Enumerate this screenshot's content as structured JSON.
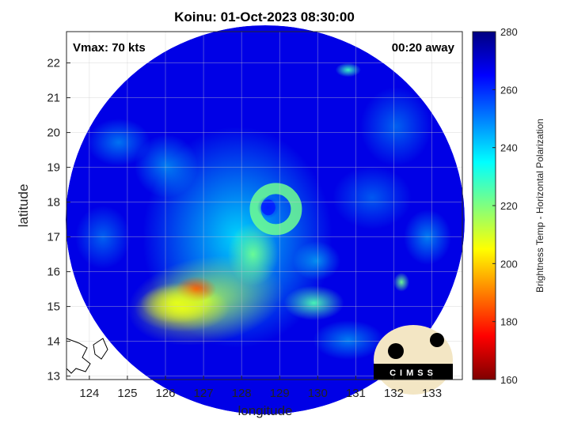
{
  "chart_data": {
    "type": "heatmap",
    "title": "Koinu: 01-Oct-2023 08:30:00",
    "annotations": {
      "left": "Vmax: 70 kts",
      "right": "00:20 away"
    },
    "xlabel": "longitude",
    "ylabel": "latitude",
    "xlim": [
      123.4,
      133.8
    ],
    "ylim": [
      12.9,
      22.9
    ],
    "xticks": [
      124,
      125,
      126,
      127,
      128,
      129,
      130,
      131,
      132,
      133
    ],
    "yticks": [
      13,
      14,
      15,
      16,
      17,
      18,
      19,
      20,
      21,
      22
    ],
    "grid": true,
    "colorbar": {
      "label": "Brightness Temp - Horizontal Polarization",
      "range": [
        160,
        280
      ],
      "ticks": [
        160,
        180,
        200,
        220,
        240,
        260,
        280
      ],
      "colormap": "jet"
    },
    "background_value": 268,
    "features": [
      {
        "name": "eyewall",
        "lon": 128.9,
        "lat": 17.8,
        "value": 222
      },
      {
        "name": "eye",
        "lon": 128.7,
        "lat": 17.85,
        "value": 262
      },
      {
        "name": "outer band core",
        "lon": 126.8,
        "lat": 15.5,
        "value": 184
      },
      {
        "name": "southwest band",
        "lon": 126.3,
        "lat": 15.1,
        "value": 208
      },
      {
        "name": "spiral band",
        "lon": 128.3,
        "lat": 16.5,
        "value": 222
      },
      {
        "name": "southeast band",
        "lon": 129.9,
        "lat": 15.1,
        "value": 226
      },
      {
        "name": "east cell",
        "lon": 132.2,
        "lat": 15.7,
        "value": 222
      },
      {
        "name": "north cell",
        "lon": 130.8,
        "lat": 21.8,
        "value": 228
      }
    ],
    "logo_text": "CIMSS"
  }
}
